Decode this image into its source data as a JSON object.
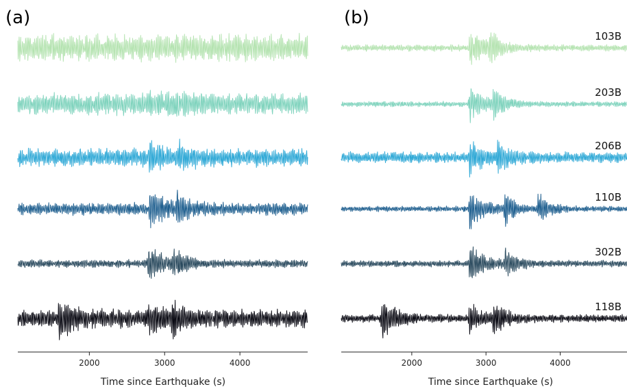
{
  "colors": [
    "#b4e3b0",
    "#7fd3bd",
    "#2ea8d6",
    "#1f5f8f",
    "#2a4a5e",
    "#0b0b14"
  ],
  "chart_data": [
    {
      "type": "line",
      "panel": "(a)",
      "xlabel": "Time since Earthquake (s)",
      "xlim": [
        1050,
        4900
      ],
      "xticks": [
        2000,
        3000,
        4000
      ],
      "tick_labels": [
        "2000",
        "3000",
        "4000"
      ],
      "series": [
        {
          "arrivals": [],
          "base_amp": 0.75,
          "packet_amp": 0.2
        },
        {
          "arrivals": [
            2750,
            3100
          ],
          "base_amp": 0.6,
          "packet_amp": 0.35
        },
        {
          "arrivals": [
            2800,
            3200
          ],
          "base_amp": 0.5,
          "packet_amp": 0.5
        },
        {
          "arrivals": [
            2800,
            3150
          ],
          "base_amp": 0.35,
          "packet_amp": 0.75
        },
        {
          "arrivals": [
            2780,
            3120
          ],
          "base_amp": 0.22,
          "packet_amp": 0.95
        },
        {
          "arrivals": [
            1600,
            2780,
            3100
          ],
          "base_amp": 0.5,
          "packet_amp": 0.75
        }
      ]
    },
    {
      "type": "line",
      "panel": "(b)",
      "xlabel": "Time since Earthquake (s)",
      "xlim": [
        1050,
        4900
      ],
      "xticks": [
        2000,
        3000,
        4000
      ],
      "tick_labels": [
        "2000",
        "3000",
        "4000"
      ],
      "series": [
        {
          "name": "103B",
          "arrivals": [
            2780,
            3050
          ],
          "base_amp": 0.18,
          "packet_amp": 0.9
        },
        {
          "name": "203B",
          "arrivals": [
            2780,
            3100
          ],
          "base_amp": 0.15,
          "packet_amp": 0.9
        },
        {
          "name": "206B",
          "arrivals": [
            2780,
            3150
          ],
          "base_amp": 0.3,
          "packet_amp": 0.75
        },
        {
          "name": "110B",
          "arrivals": [
            2780,
            3250,
            3700
          ],
          "base_amp": 0.15,
          "packet_amp": 1.0
        },
        {
          "name": "302B",
          "arrivals": [
            2780,
            3250
          ],
          "base_amp": 0.18,
          "packet_amp": 0.9
        },
        {
          "name": "118B",
          "arrivals": [
            1600,
            2780,
            3100
          ],
          "base_amp": 0.22,
          "packet_amp": 1.0
        }
      ]
    }
  ]
}
